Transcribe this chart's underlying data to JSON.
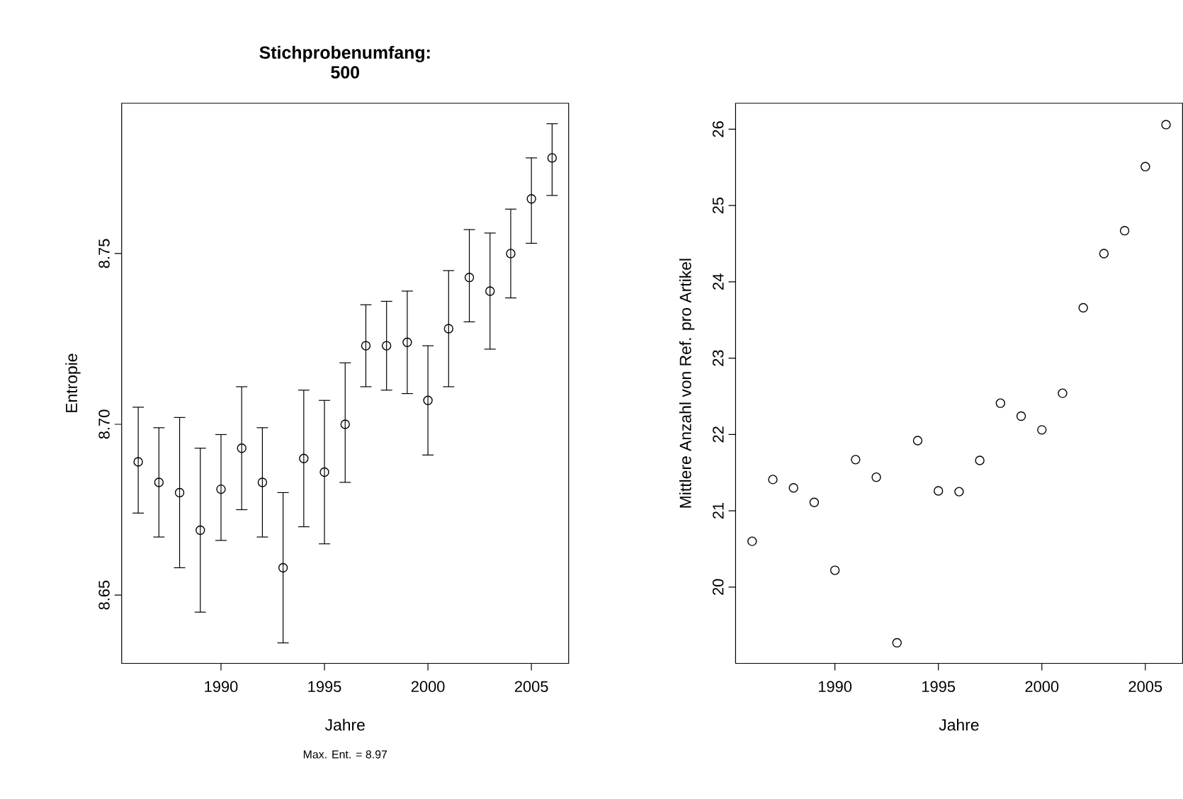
{
  "chart_data": [
    {
      "type": "scatter",
      "title": "Stichprobenumfang: 500",
      "xlabel": "Jahre",
      "ylabel": "Entropie",
      "x": [
        1986,
        1987,
        1988,
        1989,
        1990,
        1991,
        1992,
        1993,
        1994,
        1995,
        1996,
        1997,
        1998,
        1999,
        2000,
        2001,
        2002,
        2003,
        2004,
        2005,
        2006
      ],
      "values": [
        8.689,
        8.683,
        8.68,
        8.669,
        8.681,
        8.693,
        8.683,
        8.658,
        8.69,
        8.686,
        8.7,
        8.723,
        8.723,
        8.724,
        8.707,
        8.728,
        8.743,
        8.739,
        8.75,
        8.766,
        8.778
      ],
      "errors": [
        [
          8.674,
          8.705
        ],
        [
          8.667,
          8.699
        ],
        [
          8.658,
          8.702
        ],
        [
          8.645,
          8.693
        ],
        [
          8.666,
          8.697
        ],
        [
          8.675,
          8.711
        ],
        [
          8.667,
          8.699
        ],
        [
          8.636,
          8.68
        ],
        [
          8.67,
          8.71
        ],
        [
          8.665,
          8.707
        ],
        [
          8.683,
          8.718
        ],
        [
          8.711,
          8.735
        ],
        [
          8.71,
          8.736
        ],
        [
          8.709,
          8.739
        ],
        [
          8.691,
          8.723
        ],
        [
          8.711,
          8.745
        ],
        [
          8.73,
          8.757
        ],
        [
          8.722,
          8.756
        ],
        [
          8.737,
          8.763
        ],
        [
          8.753,
          8.778
        ],
        [
          8.767,
          8.788
        ]
      ],
      "color": "#000000",
      "marker": "circle",
      "grid": false,
      "xlim": [
        1985.2,
        2006.8
      ],
      "xticks": [
        1990,
        1995,
        2000,
        2005
      ],
      "ylim": [
        8.63,
        8.794
      ],
      "yticks": [
        8.65,
        {
          "value": 8.7,
          "label": "8.70"
        },
        8.75
      ],
      "annotations": [
        "Max. Ent. =  8.97"
      ]
    },
    {
      "type": "scatter",
      "xlabel": "Jahre",
      "ylabel": "Mittlere Anzahl von Ref. pro Artikel",
      "x": [
        1986,
        1987,
        1988,
        1989,
        1990,
        1991,
        1992,
        1993,
        1994,
        1995,
        1996,
        1997,
        1998,
        1999,
        2000,
        2001,
        2002,
        2003,
        2004,
        2005,
        2006
      ],
      "values": [
        20.6,
        21.41,
        21.3,
        21.11,
        20.22,
        21.67,
        21.44,
        19.27,
        21.92,
        21.26,
        21.25,
        21.66,
        22.41,
        22.24,
        22.06,
        22.54,
        23.66,
        24.37,
        24.67,
        25.51,
        26.06
      ],
      "color": "#000000",
      "marker": "circle",
      "grid": false,
      "xlim": [
        1985.2,
        2006.8
      ],
      "xticks": [
        1990,
        1995,
        2000,
        2005
      ],
      "ylim": [
        19.0,
        26.34
      ],
      "yticks": [
        20,
        21,
        22,
        23,
        24,
        25,
        26
      ]
    }
  ]
}
